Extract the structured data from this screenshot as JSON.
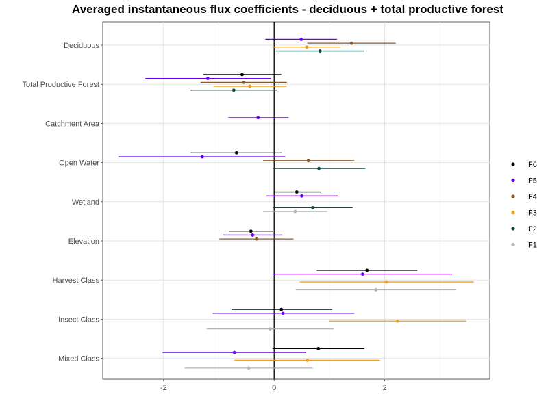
{
  "chart_data": {
    "type": "scatter",
    "subtype": "point-range",
    "title": "Averaged instantaneous flux coefficients - deciduous + total productive forest",
    "xlabel": "",
    "ylabel": "",
    "xlim": [
      -3.1,
      3.9
    ],
    "xticks": [
      -2,
      0,
      2
    ],
    "xtick_labels": [
      "-2",
      "0",
      "2"
    ],
    "reference_line_x": 0,
    "grid": true,
    "legend_position": "right",
    "categories": [
      "Deciduous",
      "Total Productive Forest",
      "Catchment Area",
      "Open Water",
      "Wetland",
      "Elevation",
      "Harvest Class",
      "Insect Class",
      "Mixed Class"
    ],
    "series": [
      {
        "name": "IF6",
        "color": "#000000",
        "points": [
          {
            "category": "Total Productive Forest",
            "estimate": -0.58,
            "low": -1.28,
            "high": 0.13
          },
          {
            "category": "Open Water",
            "estimate": -0.68,
            "low": -1.51,
            "high": 0.14
          },
          {
            "category": "Wetland",
            "estimate": 0.41,
            "low": 0.0,
            "high": 0.84
          },
          {
            "category": "Elevation",
            "estimate": -0.42,
            "low": -0.82,
            "high": -0.02
          },
          {
            "category": "Harvest Class",
            "estimate": 1.68,
            "low": 0.77,
            "high": 2.59
          },
          {
            "category": "Insect Class",
            "estimate": 0.13,
            "low": -0.77,
            "high": 1.05
          },
          {
            "category": "Mixed Class",
            "estimate": 0.8,
            "low": -0.03,
            "high": 1.63
          }
        ]
      },
      {
        "name": "IF5",
        "color": "#6a00ff",
        "points": [
          {
            "category": "Deciduous",
            "estimate": 0.49,
            "low": -0.16,
            "high": 1.14
          },
          {
            "category": "Total Productive Forest",
            "estimate": -1.2,
            "low": -2.33,
            "high": -0.06
          },
          {
            "category": "Catchment Area",
            "estimate": -0.29,
            "low": -0.83,
            "high": 0.26
          },
          {
            "category": "Open Water",
            "estimate": -1.3,
            "low": -2.82,
            "high": 0.2
          },
          {
            "category": "Wetland",
            "estimate": 0.5,
            "low": -0.14,
            "high": 1.15
          },
          {
            "category": "Elevation",
            "estimate": -0.39,
            "low": -0.92,
            "high": 0.15
          },
          {
            "category": "Harvest Class",
            "estimate": 1.6,
            "low": -0.03,
            "high": 3.22
          },
          {
            "category": "Insect Class",
            "estimate": 0.16,
            "low": -1.11,
            "high": 1.45
          },
          {
            "category": "Mixed Class",
            "estimate": -0.72,
            "low": -2.02,
            "high": 0.58
          }
        ]
      },
      {
        "name": "IF4",
        "color": "#8b5a2b",
        "points": [
          {
            "category": "Deciduous",
            "estimate": 1.4,
            "low": 0.6,
            "high": 2.2
          },
          {
            "category": "Total Productive Forest",
            "estimate": -0.55,
            "low": -1.33,
            "high": 0.23
          },
          {
            "category": "Open Water",
            "estimate": 0.62,
            "low": -0.2,
            "high": 1.45
          },
          {
            "category": "Elevation",
            "estimate": -0.32,
            "low": -0.99,
            "high": 0.35
          }
        ]
      },
      {
        "name": "IF3",
        "color": "#f0a020",
        "points": [
          {
            "category": "Deciduous",
            "estimate": 0.59,
            "low": -0.03,
            "high": 1.2
          },
          {
            "category": "Total Productive Forest",
            "estimate": -0.44,
            "low": -1.1,
            "high": 0.23
          },
          {
            "category": "Harvest Class",
            "estimate": 2.03,
            "low": 0.46,
            "high": 3.61
          },
          {
            "category": "Insect Class",
            "estimate": 2.23,
            "low": 0.99,
            "high": 3.48
          },
          {
            "category": "Mixed Class",
            "estimate": 0.6,
            "low": -0.72,
            "high": 1.91
          }
        ]
      },
      {
        "name": "IF2",
        "color": "#0e4a47",
        "points": [
          {
            "category": "Deciduous",
            "estimate": 0.83,
            "low": 0.03,
            "high": 1.63
          },
          {
            "category": "Total Productive Forest",
            "estimate": -0.73,
            "low": -1.51,
            "high": 0.05
          },
          {
            "category": "Open Water",
            "estimate": 0.81,
            "low": -0.02,
            "high": 1.65
          },
          {
            "category": "Wetland",
            "estimate": 0.7,
            "low": -0.02,
            "high": 1.42
          }
        ]
      },
      {
        "name": "IF1",
        "color": "#b4b4b4",
        "points": [
          {
            "category": "Wetland",
            "estimate": 0.38,
            "low": -0.2,
            "high": 0.96
          },
          {
            "category": "Harvest Class",
            "estimate": 1.84,
            "low": 0.39,
            "high": 3.29
          },
          {
            "category": "Insect Class",
            "estimate": -0.07,
            "low": -1.22,
            "high": 1.08
          },
          {
            "category": "Mixed Class",
            "estimate": -0.46,
            "low": -1.62,
            "high": 0.7
          }
        ]
      }
    ]
  }
}
